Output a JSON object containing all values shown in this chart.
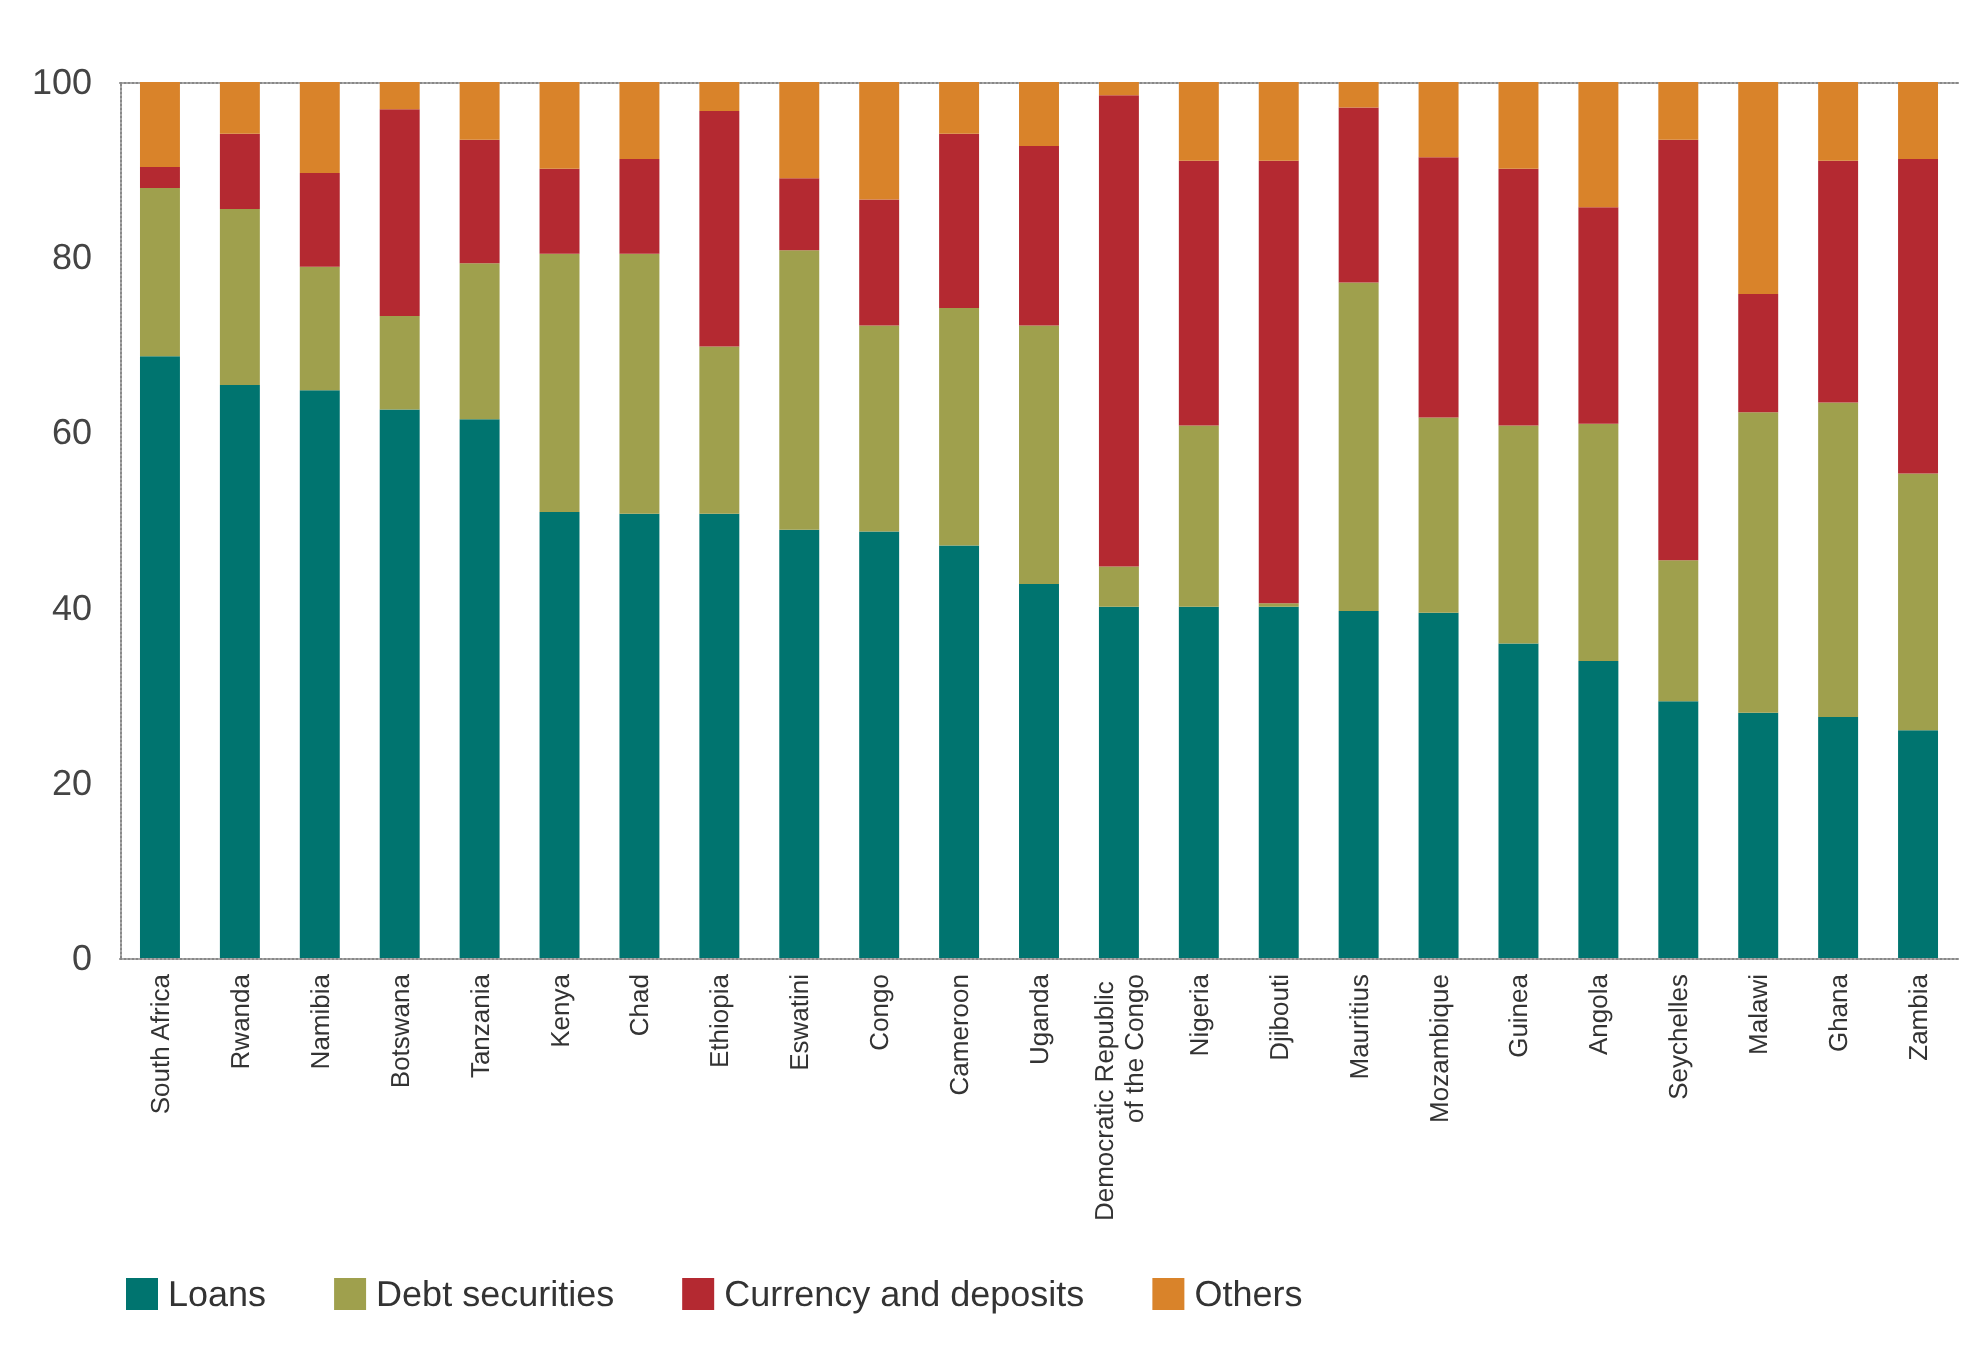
{
  "chart_data": {
    "type": "bar",
    "stacked": true,
    "categories": [
      "South Africa",
      "Rwanda",
      "Namibia",
      "Botswana",
      "Tanzania",
      "Kenya",
      "Chad",
      "Ethiopia",
      "Eswatini",
      "Congo",
      "Cameroon",
      "Uganda",
      "Democratic Republic of the Congo",
      "Nigeria",
      "Djibouti",
      "Mauritius",
      "Mozambique",
      "Guinea",
      "Angola",
      "Seychelles",
      "Malawi",
      "Ghana",
      "Zambia"
    ],
    "series": [
      {
        "name": "Loans",
        "color": "#00746f",
        "values": [
          68.7,
          65.4,
          64.8,
          62.6,
          61.5,
          50.9,
          50.7,
          50.7,
          48.9,
          48.7,
          47.1,
          42.7,
          40.1,
          40.1,
          40.1,
          39.6,
          39.4,
          35.9,
          33.9,
          29.3,
          28.0,
          27.5,
          26.0
        ]
      },
      {
        "name": "Debt securities",
        "color": "#9fa04d",
        "values": [
          19.2,
          20.1,
          14.1,
          10.7,
          17.8,
          29.5,
          29.7,
          19.1,
          31.9,
          23.5,
          27.1,
          29.5,
          4.6,
          20.7,
          0.4,
          37.5,
          22.3,
          24.9,
          27.1,
          16.1,
          34.3,
          35.9,
          29.3
        ]
      },
      {
        "name": "Currency and deposits",
        "color": "#b42931",
        "values": [
          2.4,
          8.6,
          10.7,
          23.6,
          14.1,
          9.7,
          10.8,
          26.9,
          8.2,
          14.4,
          19.9,
          20.5,
          53.8,
          30.2,
          50.5,
          20.0,
          29.7,
          29.3,
          24.7,
          48.0,
          13.5,
          27.6,
          35.9
        ]
      },
      {
        "name": "Others",
        "color": "#d9832a",
        "values": [
          9.7,
          5.9,
          10.4,
          3.1,
          6.6,
          9.9,
          8.8,
          3.3,
          11.0,
          13.4,
          5.9,
          7.3,
          1.5,
          9.0,
          9.0,
          2.9,
          8.6,
          9.9,
          14.3,
          6.6,
          24.2,
          9.0,
          8.8
        ]
      }
    ],
    "ylim": [
      0,
      100
    ],
    "yticks": [
      0,
      20,
      40,
      60,
      80,
      100
    ],
    "grid": false,
    "legend": "bottom left"
  }
}
